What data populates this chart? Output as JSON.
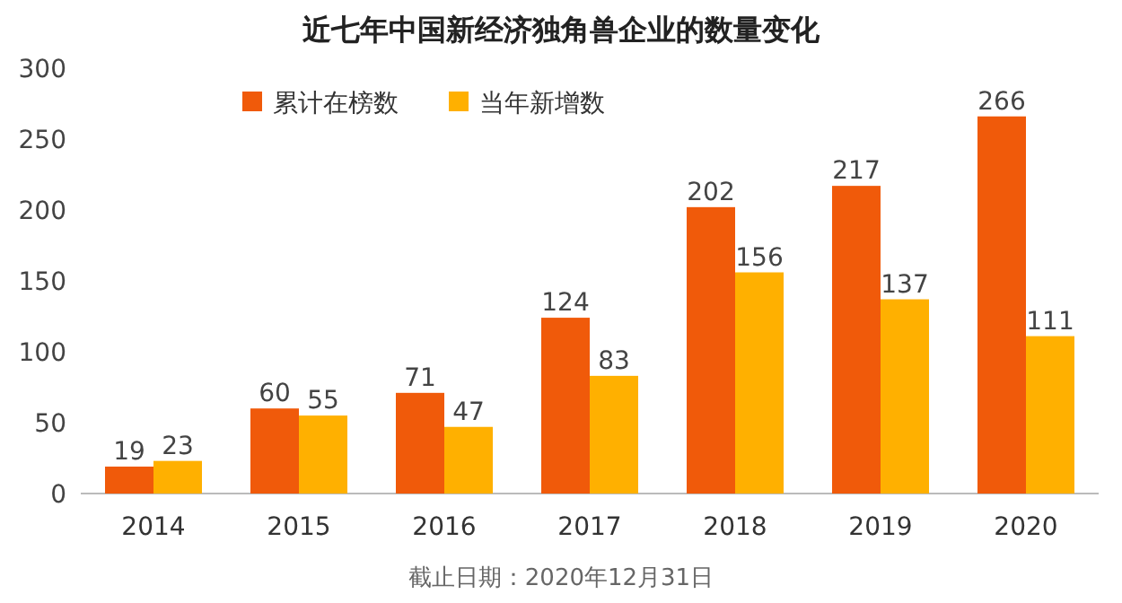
{
  "chart_data": {
    "type": "bar",
    "title": "近七年中国新经济独角兽企业的数量变化",
    "categories": [
      "2014",
      "2015",
      "2016",
      "2017",
      "2018",
      "2019",
      "2020"
    ],
    "series": [
      {
        "name": "累计在榜数",
        "color": "#f05a0a",
        "values": [
          19,
          60,
          71,
          124,
          202,
          217,
          266
        ]
      },
      {
        "name": "当年新增数",
        "color": "#ffb000",
        "values": [
          23,
          55,
          47,
          83,
          156,
          137,
          111
        ]
      }
    ],
    "ylim": [
      0,
      300
    ],
    "yticks": [
      0,
      50,
      100,
      150,
      200,
      250,
      300
    ],
    "grid": false,
    "legend": "top left",
    "data_labels": true,
    "annotations": [
      "截止日期：2020年12月31日"
    ]
  }
}
